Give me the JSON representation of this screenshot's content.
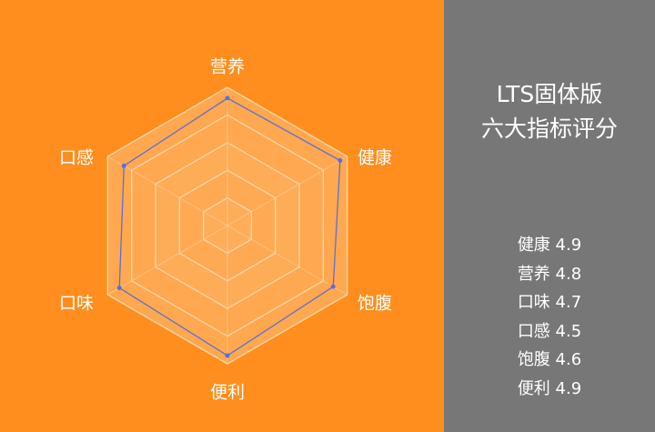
{
  "chart_data": {
    "type": "radar",
    "categories": [
      "营养",
      "健康",
      "饱腹",
      "便利",
      "口味",
      "口感"
    ],
    "values": [
      4.8,
      4.9,
      4.6,
      4.9,
      4.7,
      4.5
    ],
    "range": [
      0,
      5
    ],
    "rings": 5,
    "colors": {
      "background": "#FF8E1E",
      "area": "#FFB060",
      "line": "#5B6FD6",
      "grid": "#FFD2A0"
    }
  },
  "panel": {
    "title_line1": "LTS固体版",
    "title_line2": "六大指标评分",
    "scores": [
      "健康 4.9",
      "营养 4.8",
      "口味 4.7",
      "口感 4.5",
      "饱腹 4.6",
      "便利 4.9"
    ],
    "background": "#777777"
  }
}
